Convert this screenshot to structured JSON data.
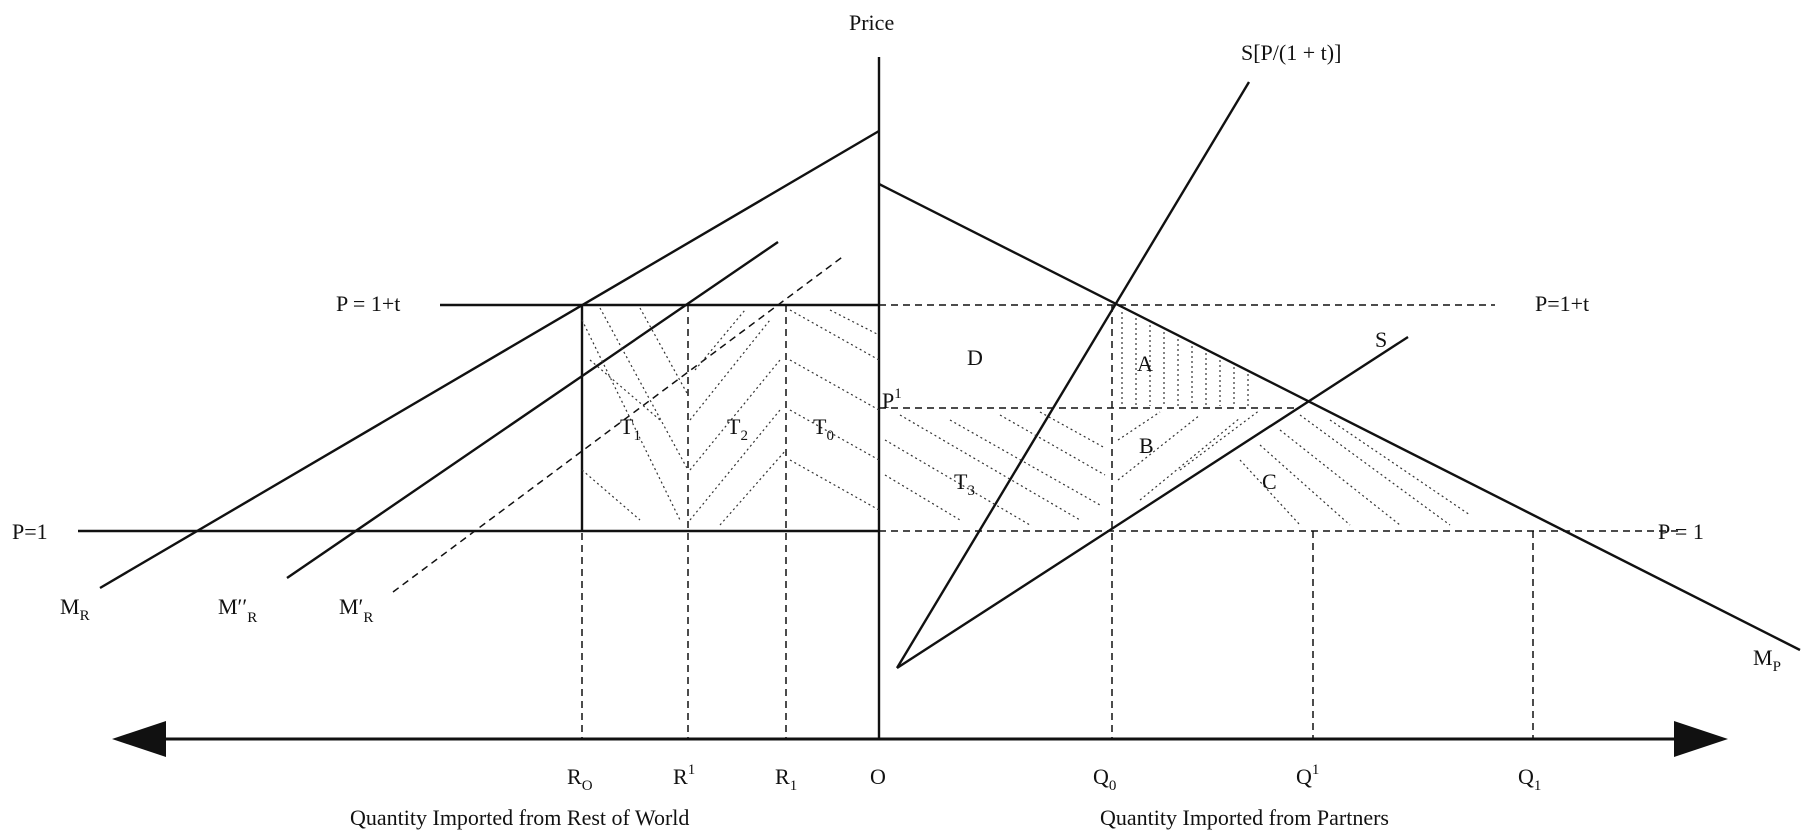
{
  "labels": {
    "price_axis": "Price",
    "s_shift": "S[P/(1 + t)]",
    "s": "S",
    "mp_main": "M",
    "mp_sub": "P",
    "mr_main": "M",
    "mr_sub": "R",
    "mr2_main": "M′′",
    "mr2_sub": "R",
    "mr1_main": "M′",
    "mr1_sub": "R",
    "p_t_left": "P = 1+t",
    "p_t_right": "P=1+t",
    "p1_left": "P=1",
    "p1_right": "P = 1",
    "p_super_main": "P",
    "p_super_sup": "1",
    "region_d": "D",
    "region_a": "A",
    "region_b": "B",
    "region_c": "C",
    "t1_main": "T",
    "t1_sub": "1",
    "t2_main": "T",
    "t2_sub": "2",
    "t0_main": "T",
    "t0_sub": "0",
    "t3_main": "T",
    "t3_sub": "3",
    "ro_main": "R",
    "ro_sub": "O",
    "rsup_main": "R",
    "rsup_sup": "1",
    "r1_main": "R",
    "r1_sub": "1",
    "origin": "O",
    "q0_main": "Q",
    "q0_sub": "0",
    "qsup_main": "Q",
    "qsup_sup": "1",
    "q1_main": "Q",
    "q1_sub": "1",
    "x_left_title": "Quantity Imported from Rest of World",
    "x_right_title": "Quantity Imported from Partners"
  }
}
